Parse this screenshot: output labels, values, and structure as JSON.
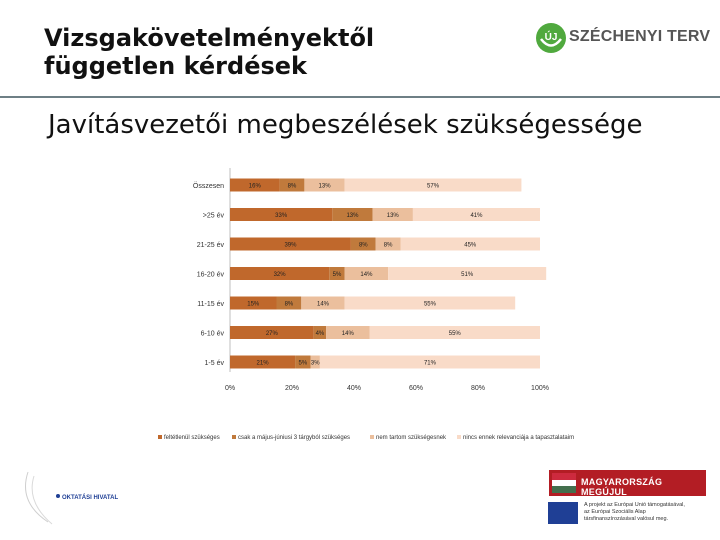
{
  "header": {
    "title": "Vizsgakövetelményektől\nfüggetlen kérdések",
    "logo_text": "SZÉCHENYI TERV",
    "logo_mark": "ÚJ"
  },
  "subtitle": "Javításvezetői megbeszélések szükségessége",
  "footer": {
    "left_logo_text": "OKTATÁSI HIVATAL",
    "badge_text": "MAGYARORSZÁG MEGÚJUL",
    "eu_text": "A projekt az Európai Unió támogatásával,\naz Európai Szociális Alap\ntársfinanszírozásával valósul meg."
  },
  "colors": {
    "series": [
      "#c0682c",
      "#c07a3c",
      "#ebbf9d",
      "#f9dbc8"
    ],
    "brand_green": "#50a93e",
    "badge_red": "#b31d24"
  },
  "chart_data": {
    "type": "bar",
    "orientation": "horizontal",
    "stacked": true,
    "percent": true,
    "categories": [
      "Összesen",
      ">25 év",
      "21-25 év",
      "16-20 év",
      "11-15 év",
      "6-10 év",
      "1-5 év"
    ],
    "series": [
      {
        "name": "feltétlenül szükséges",
        "values": [
          16,
          33,
          39,
          32,
          15,
          27,
          21
        ]
      },
      {
        "name": "csak a május-júniusi 3 tárgyból szükséges",
        "values": [
          8,
          13,
          8,
          5,
          8,
          4,
          5
        ]
      },
      {
        "name": "nem tartom szükségesnek",
        "values": [
          13,
          13,
          8,
          14,
          14,
          14,
          3
        ]
      },
      {
        "name": "nincs ennek relevanciája a tapasztalataim",
        "values": [
          57,
          41,
          45,
          51,
          55,
          55,
          71
        ]
      }
    ],
    "value_labels": [
      [
        "16%",
        "8%",
        "13%",
        "57%"
      ],
      [
        "33%",
        "13%",
        "13%",
        "41%"
      ],
      [
        "39%",
        "8%",
        "8%",
        "45%"
      ],
      [
        "32%",
        "5%",
        "14%",
        "51%"
      ],
      [
        "15%",
        "8%",
        "14%",
        "55%"
      ],
      [
        "27%",
        "4%",
        "14%",
        "55%"
      ],
      [
        "21%",
        "5%",
        "3%",
        "71%"
      ]
    ],
    "x_ticks": [
      "0%",
      "20%",
      "40%",
      "60%",
      "80%",
      "100%"
    ],
    "xlim": [
      0,
      100
    ],
    "legend_position": "bottom"
  }
}
